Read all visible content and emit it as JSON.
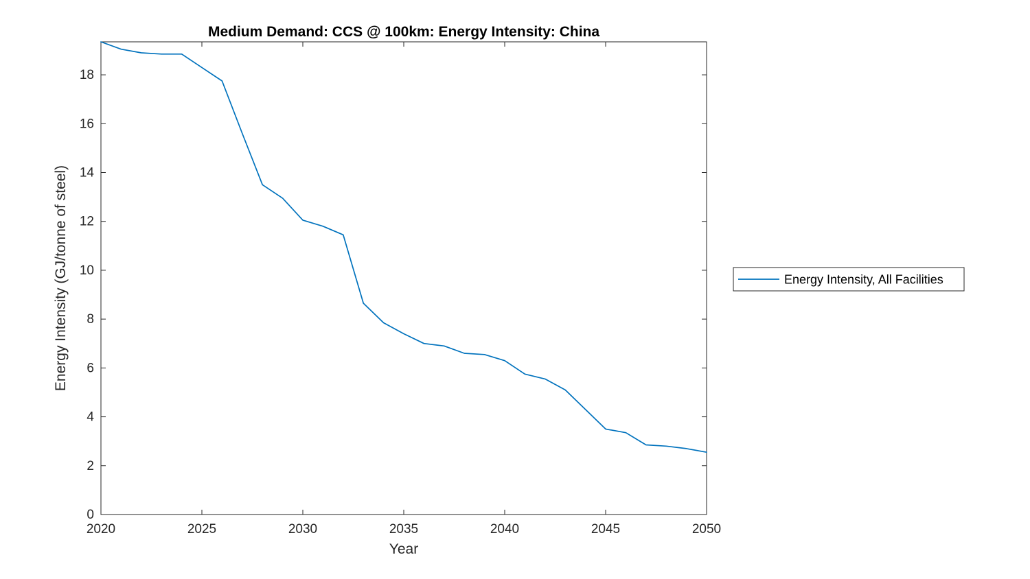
{
  "figure": {
    "background": "#ffffff"
  },
  "chart_data": {
    "type": "line",
    "title": "Medium Demand: CCS @ 100km: Energy Intensity: China",
    "xlabel": "Year",
    "ylabel": "Energy Intensity (GJ/tonne of steel)",
    "xlim": [
      2020,
      2050
    ],
    "ylim": [
      0,
      19.35
    ],
    "xticks": [
      2020,
      2025,
      2030,
      2035,
      2040,
      2045,
      2050
    ],
    "yticks": [
      0,
      2,
      4,
      6,
      8,
      10,
      12,
      14,
      16,
      18
    ],
    "grid": false,
    "box": true,
    "axis_color": "#262626",
    "title_color": "#000000",
    "legend": {
      "position": "right-outside",
      "border_color": "#262626",
      "background": "#ffffff",
      "entries": [
        "Energy Intensity, All Facilities"
      ]
    },
    "series": [
      {
        "name": "Energy Intensity, All Facilities",
        "color": "#0072BD",
        "x": [
          2020,
          2021,
          2022,
          2023,
          2024,
          2025,
          2026,
          2027,
          2028,
          2029,
          2030,
          2031,
          2032,
          2033,
          2034,
          2035,
          2036,
          2037,
          2038,
          2039,
          2040,
          2041,
          2042,
          2043,
          2044,
          2045,
          2046,
          2047,
          2048,
          2049,
          2050
        ],
        "y": [
          19.35,
          19.05,
          18.9,
          18.85,
          18.85,
          18.3,
          17.75,
          15.6,
          13.5,
          12.95,
          12.05,
          11.8,
          11.45,
          8.65,
          7.85,
          7.4,
          7.0,
          6.9,
          6.6,
          6.55,
          6.3,
          5.75,
          5.55,
          5.1,
          4.3,
          3.5,
          3.35,
          2.85,
          2.8,
          2.7,
          2.55
        ]
      }
    ]
  }
}
